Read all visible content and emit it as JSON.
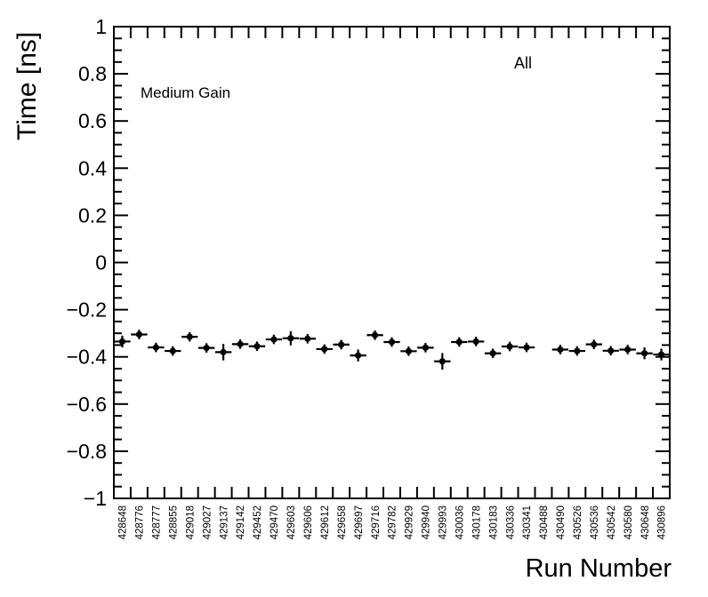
{
  "canvas": {
    "background": "#ffffff",
    "foreground": "#000000"
  },
  "chart_data": {
    "type": "scatter",
    "title": "",
    "xlabel": "Run Number",
    "ylabel": "Time [ns]",
    "ylim": [
      -1,
      1
    ],
    "y_major_step": 0.2,
    "y_minor_step": 0.05,
    "grid": false,
    "y_tick_labels": [
      "1",
      "0.8",
      "0.6",
      "0.4",
      "0.2",
      "0",
      "−0.2",
      "−0.4",
      "−0.6",
      "−0.8",
      "−1"
    ],
    "y_tick_values": [
      1,
      0.8,
      0.6,
      0.4,
      0.2,
      0,
      -0.2,
      -0.4,
      -0.6,
      -0.8,
      -1
    ],
    "categories": [
      "428648",
      "428776",
      "428777",
      "428855",
      "429018",
      "429027",
      "429137",
      "429142",
      "429452",
      "429470",
      "429603",
      "429606",
      "429612",
      "429658",
      "429697",
      "429716",
      "429782",
      "429929",
      "429940",
      "429993",
      "430036",
      "430178",
      "430183",
      "430336",
      "430341",
      "430488",
      "430490",
      "430526",
      "430536",
      "430542",
      "430580",
      "430648",
      "430896"
    ],
    "series": [
      {
        "name": "All",
        "marker": "filled-circle",
        "color": "#000000",
        "values": [
          -0.335,
          -0.305,
          -0.36,
          -0.375,
          -0.315,
          -0.362,
          -0.38,
          -0.346,
          -0.355,
          -0.326,
          -0.321,
          -0.323,
          -0.367,
          -0.348,
          -0.394,
          -0.308,
          -0.337,
          -0.376,
          -0.361,
          -0.419,
          -0.337,
          -0.335,
          -0.385,
          -0.356,
          -0.36,
          null,
          -0.369,
          -0.375,
          -0.347,
          -0.374,
          -0.369,
          -0.385,
          -0.39
        ],
        "yerr": [
          0.025,
          0.02,
          0.02,
          0.02,
          0.02,
          0.02,
          0.035,
          0.02,
          0.02,
          0.02,
          0.03,
          0.02,
          0.02,
          0.02,
          0.025,
          0.02,
          0.02,
          0.02,
          0.02,
          0.035,
          0.02,
          0.02,
          0.02,
          0.02,
          0.02,
          null,
          0.02,
          0.02,
          0.02,
          0.02,
          0.02,
          0.025,
          0.025
        ],
        "xerr_half_bin": 0.5
      }
    ],
    "annotations": [
      {
        "text": "Medium Gain"
      },
      {
        "text": "All"
      }
    ]
  }
}
